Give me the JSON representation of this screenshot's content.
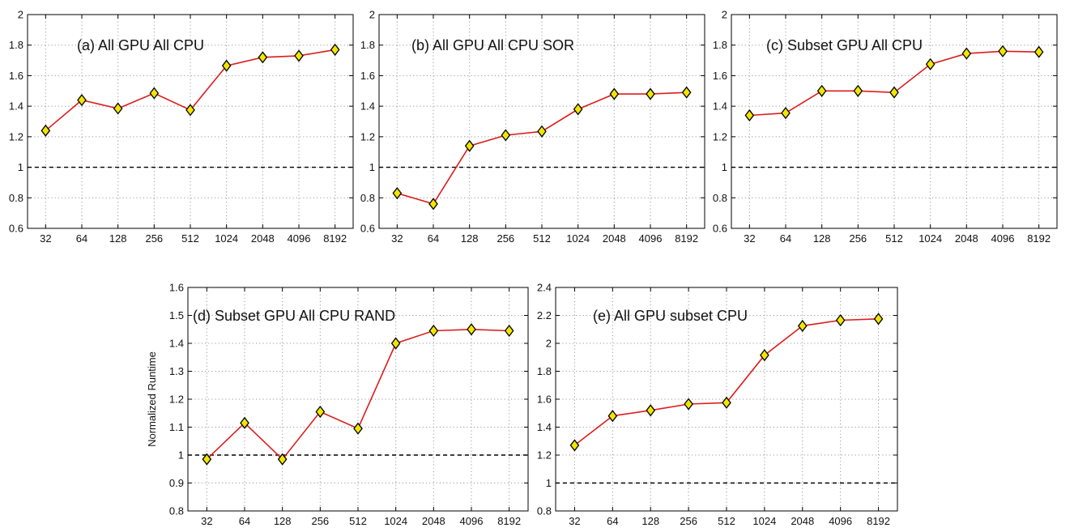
{
  "colors": {
    "line": "#dd1c1c",
    "marker_fill": "#f2e600",
    "marker_stroke": "#000000",
    "grid": "#9a9a9a",
    "reference_line": "#000000"
  },
  "chart_data": [
    {
      "id": "a",
      "type": "line",
      "title": "(a) All GPU All CPU",
      "xlabel": "",
      "ylabel": "",
      "categories": [
        "32",
        "64",
        "128",
        "256",
        "512",
        "1024",
        "2048",
        "4096",
        "8192"
      ],
      "values": [
        1.24,
        1.44,
        1.385,
        1.485,
        1.375,
        1.665,
        1.72,
        1.73,
        1.77
      ],
      "ylim": [
        0.6,
        2
      ],
      "yticks": [
        0.6,
        0.8,
        1,
        1.2,
        1.4,
        1.6,
        1.8,
        2
      ],
      "ytick_labels": [
        "0.6",
        "0.8",
        "1",
        "1.2",
        "1.4",
        "1.6",
        "1.8",
        "2"
      ],
      "reference": 1,
      "grid": true
    },
    {
      "id": "b",
      "type": "line",
      "title": "(b) All GPU All CPU SOR",
      "xlabel": "",
      "ylabel": "",
      "categories": [
        "32",
        "64",
        "128",
        "256",
        "512",
        "1024",
        "2048",
        "4096",
        "8192"
      ],
      "values": [
        0.83,
        0.76,
        1.14,
        1.21,
        1.235,
        1.38,
        1.48,
        1.48,
        1.49
      ],
      "ylim": [
        0.6,
        2
      ],
      "yticks": [
        0.6,
        0.8,
        1,
        1.2,
        1.4,
        1.6,
        1.8,
        2
      ],
      "ytick_labels": [
        "0.6",
        "0.8",
        "1",
        "1.2",
        "1.4",
        "1.6",
        "1.8",
        "2"
      ],
      "reference": 1,
      "grid": true
    },
    {
      "id": "c",
      "type": "line",
      "title": "(c) Subset GPU All CPU",
      "xlabel": "",
      "ylabel": "",
      "categories": [
        "32",
        "64",
        "128",
        "256",
        "512",
        "1024",
        "2048",
        "4096",
        "8192"
      ],
      "values": [
        1.34,
        1.355,
        1.5,
        1.5,
        1.49,
        1.675,
        1.745,
        1.76,
        1.755
      ],
      "ylim": [
        0.6,
        2
      ],
      "yticks": [
        0.6,
        0.8,
        1,
        1.2,
        1.4,
        1.6,
        1.8,
        2
      ],
      "ytick_labels": [
        "0.6",
        "0.8",
        "1",
        "1.2",
        "1.4",
        "1.6",
        "1.8",
        "2"
      ],
      "reference": 1,
      "grid": true
    },
    {
      "id": "d",
      "type": "line",
      "title": "(d) Subset GPU All CPU RAND",
      "xlabel": "",
      "ylabel": "Normalized Runtime",
      "categories": [
        "32",
        "64",
        "128",
        "256",
        "512",
        "1024",
        "2048",
        "4096",
        "8192"
      ],
      "values": [
        0.985,
        1.115,
        0.985,
        1.155,
        1.095,
        1.4,
        1.445,
        1.45,
        1.445
      ],
      "ylim": [
        0.8,
        1.6
      ],
      "yticks": [
        0.8,
        0.9,
        1,
        1.1,
        1.2,
        1.3,
        1.4,
        1.5,
        1.6
      ],
      "ytick_labels": [
        "0.8",
        "0.9",
        "1",
        "1.1",
        "1.2",
        "1.3",
        "1.4",
        "1.5",
        "1.6"
      ],
      "reference": 1,
      "grid": true
    },
    {
      "id": "e",
      "type": "line",
      "title": "(e) All GPU subset CPU",
      "xlabel": "",
      "ylabel": "",
      "categories": [
        "32",
        "64",
        "128",
        "256",
        "512",
        "1024",
        "2048",
        "4096",
        "8192"
      ],
      "values": [
        1.27,
        1.48,
        1.52,
        1.565,
        1.575,
        1.915,
        2.125,
        2.165,
        2.175
      ],
      "ylim": [
        0.8,
        2.4
      ],
      "yticks": [
        0.8,
        1,
        1.2,
        1.4,
        1.6,
        1.8,
        2,
        2.2,
        2.4
      ],
      "ytick_labels": [
        "0.8",
        "1",
        "1.2",
        "1.4",
        "1.6",
        "1.8",
        "2",
        "2.2",
        "2.4"
      ],
      "reference": 1,
      "grid": true
    }
  ]
}
